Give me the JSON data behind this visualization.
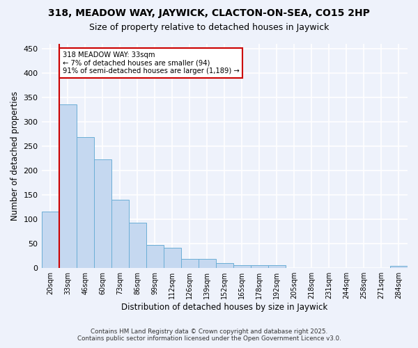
{
  "title": "318, MEADOW WAY, JAYWICK, CLACTON-ON-SEA, CO15 2HP",
  "subtitle": "Size of property relative to detached houses in Jaywick",
  "xlabel": "Distribution of detached houses by size in Jaywick",
  "ylabel": "Number of detached properties",
  "bar_labels": [
    "20sqm",
    "33sqm",
    "46sqm",
    "60sqm",
    "73sqm",
    "86sqm",
    "99sqm",
    "112sqm",
    "126sqm",
    "139sqm",
    "152sqm",
    "165sqm",
    "178sqm",
    "192sqm",
    "205sqm",
    "218sqm",
    "231sqm",
    "244sqm",
    "258sqm",
    "271sqm",
    "284sqm"
  ],
  "bar_values": [
    115,
    335,
    268,
    222,
    140,
    93,
    46,
    41,
    18,
    18,
    10,
    6,
    6,
    5,
    0,
    0,
    0,
    0,
    0,
    0,
    4
  ],
  "bar_color": "#c5d8f0",
  "bar_edge_color": "#6baed6",
  "background_color": "#eef2fb",
  "grid_color": "#ffffff",
  "vline_color": "#cc0000",
  "annotation_text": "318 MEADOW WAY: 33sqm\n← 7% of detached houses are smaller (94)\n91% of semi-detached houses are larger (1,189) →",
  "annotation_box_facecolor": "#ffffff",
  "annotation_box_edgecolor": "#cc0000",
  "footer_line1": "Contains HM Land Registry data © Crown copyright and database right 2025.",
  "footer_line2": "Contains public sector information licensed under the Open Government Licence v3.0.",
  "ylim": [
    0,
    460
  ],
  "yticks": [
    0,
    50,
    100,
    150,
    200,
    250,
    300,
    350,
    400,
    450
  ]
}
